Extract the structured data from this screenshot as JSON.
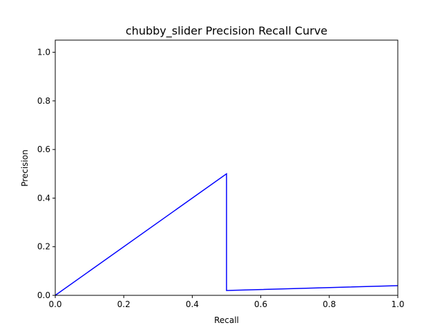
{
  "chart_data": {
    "type": "line",
    "title": "chubby_slider Precision Recall Curve",
    "xlabel": "Recall",
    "ylabel": "Precision",
    "xlim": [
      0.0,
      1.0
    ],
    "ylim": [
      0.0,
      1.05
    ],
    "xticks": [
      "0.0",
      "0.2",
      "0.4",
      "0.6",
      "0.8",
      "1.0"
    ],
    "xtick_values": [
      0.0,
      0.2,
      0.4,
      0.6,
      0.8,
      1.0
    ],
    "yticks": [
      "0.0",
      "0.2",
      "0.4",
      "0.6",
      "0.8",
      "1.0"
    ],
    "ytick_values": [
      0.0,
      0.2,
      0.4,
      0.6,
      0.8,
      1.0
    ],
    "grid": false,
    "series": [
      {
        "color": "#0000ff",
        "x": [
          0.0,
          0.5,
          0.5,
          1.0
        ],
        "y": [
          0.0,
          0.5,
          0.02,
          0.04
        ]
      }
    ]
  }
}
